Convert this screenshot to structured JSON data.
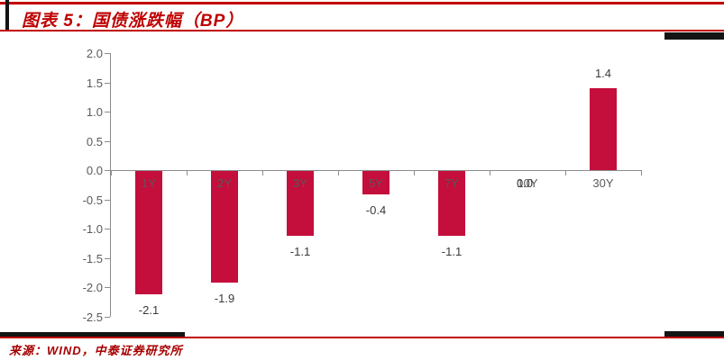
{
  "header": {
    "title": "图表 5：国债涨跌幅（BP）"
  },
  "footer": {
    "source": "来源：WIND，中泰证券研究所"
  },
  "colors": {
    "accent_red": "#C00000",
    "title_red": "#BE0000",
    "source_red": "#A50000",
    "black_bar": "#141414",
    "bar": "#C40E3C",
    "axis_gray": "#8C8C8C",
    "tick_label": "#595959",
    "data_label": "#3A3A3A"
  },
  "chart_data": {
    "type": "bar",
    "title": "国债涨跌幅（BP）",
    "categories": [
      "1Y",
      "2Y",
      "3Y",
      "5Y",
      "7Y",
      "10Y",
      "30Y"
    ],
    "values": [
      -2.1,
      -1.9,
      -1.1,
      -0.4,
      -1.1,
      0.0,
      1.4
    ],
    "data_labels": [
      "-2.1",
      "-1.9",
      "-1.1",
      "-0.4",
      "-1.1",
      "0.0",
      "1.4"
    ],
    "ylim": [
      -2.5,
      2.0
    ],
    "ytick_step": 0.5,
    "ytick_labels": [
      "2.0",
      "1.5",
      "1.0",
      "0.5",
      "0.0",
      "-0.5",
      "-1.0",
      "-1.5",
      "-2.0",
      "-2.5"
    ],
    "grid": false,
    "legend": "none",
    "bar_color": "#C40E3C"
  }
}
